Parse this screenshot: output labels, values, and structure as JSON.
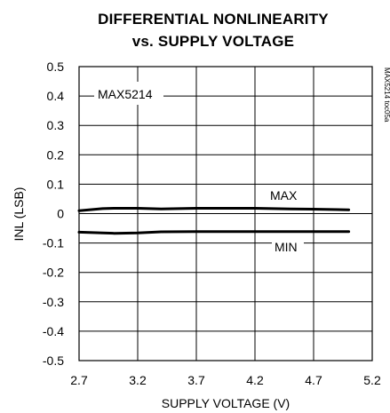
{
  "chart_data": {
    "type": "line",
    "title_line1": "DIFFERENTIAL NONLINEARITY",
    "title_line2": "vs. SUPPLY VOLTAGE",
    "xlabel": "SUPPLY VOLTAGE (V)",
    "ylabel": "INL (LSB)",
    "xlim": [
      2.7,
      5.2
    ],
    "ylim": [
      -0.5,
      0.5
    ],
    "xticks": [
      "2.7",
      "3.2",
      "3.7",
      "4.2",
      "4.7",
      "5.2"
    ],
    "yticks": [
      "0.5",
      "0.4",
      "0.3",
      "0.2",
      "0.1",
      "0",
      "-0.1",
      "-0.2",
      "-0.3",
      "-0.4",
      "-0.5"
    ],
    "grid": true,
    "part_label": "MAX5214",
    "figure_code": "MAX5214 toc05a",
    "series": [
      {
        "name": "MAX",
        "x": [
          2.7,
          2.9,
          3.0,
          3.2,
          3.4,
          3.7,
          4.0,
          4.2,
          4.5,
          4.7,
          5.0
        ],
        "values": [
          0.01,
          0.017,
          0.018,
          0.018,
          0.016,
          0.018,
          0.018,
          0.018,
          0.016,
          0.015,
          0.013
        ]
      },
      {
        "name": "MIN",
        "x": [
          2.7,
          2.9,
          3.0,
          3.2,
          3.4,
          3.7,
          4.0,
          4.2,
          4.5,
          4.7,
          5.0
        ],
        "values": [
          -0.063,
          -0.066,
          -0.067,
          -0.066,
          -0.062,
          -0.061,
          -0.061,
          -0.061,
          -0.061,
          -0.061,
          -0.061
        ]
      }
    ]
  }
}
